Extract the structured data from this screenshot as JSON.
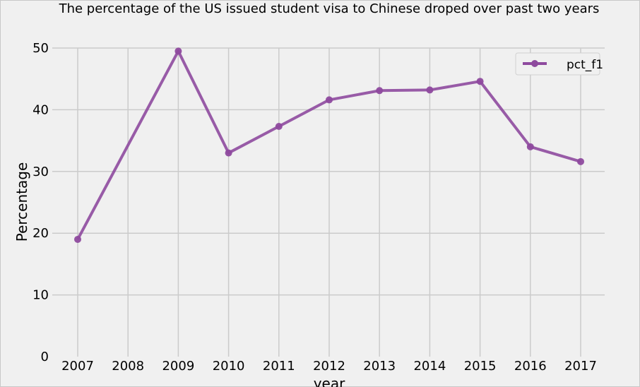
{
  "chart_data": {
    "type": "line",
    "title": "The percentage of the US issued student visa to Chinese droped over past two years",
    "xlabel": "year",
    "ylabel": "Percentage",
    "categories": [
      "2007",
      "2008",
      "2009",
      "2010",
      "2011",
      "2012",
      "2013",
      "2014",
      "2015",
      "2016",
      "2017"
    ],
    "yticks": [
      "0",
      "10",
      "20",
      "30",
      "40",
      "50"
    ],
    "ylim": [
      0,
      50
    ],
    "grid": true,
    "legend_position": "top-right",
    "series": [
      {
        "name": "pct_f1",
        "color": "#8e4a9e",
        "x": [
          2007,
          2009,
          2010,
          2011,
          2012,
          2013,
          2014,
          2015,
          2016,
          2017
        ],
        "values": [
          19.0,
          49.5,
          33.0,
          37.3,
          41.6,
          43.1,
          43.2,
          44.6,
          34.0,
          31.6
        ]
      }
    ]
  }
}
